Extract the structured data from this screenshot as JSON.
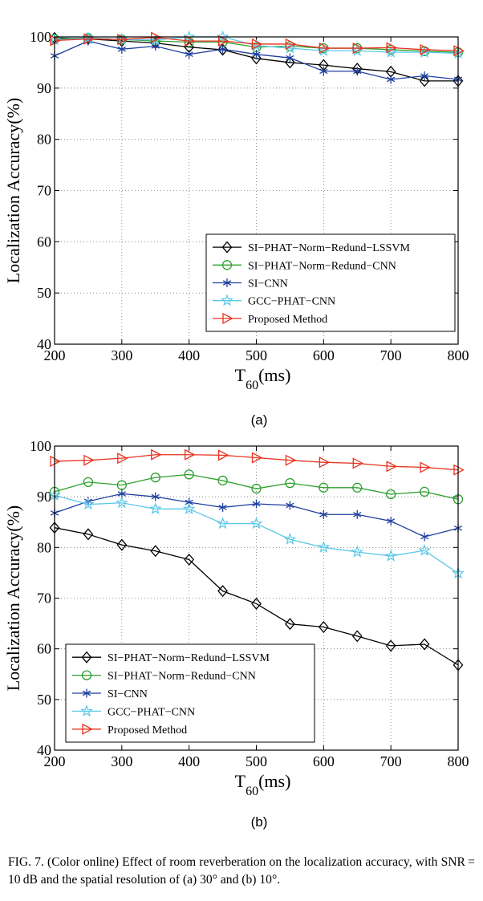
{
  "chart_data": [
    {
      "type": "line",
      "panel_label": "(a)",
      "xlabel": {
        "main": "T",
        "sub": "60",
        "unit": "(ms)"
      },
      "ylabel": "Localization Accuracy(%)",
      "xlim": [
        200,
        800
      ],
      "ylim": [
        40,
        100
      ],
      "xticks": [
        200,
        300,
        400,
        500,
        600,
        700,
        800
      ],
      "yticks": [
        40,
        50,
        60,
        70,
        80,
        90,
        100
      ],
      "grid": "dotted",
      "legend_position": "bottom-right",
      "x": [
        200,
        250,
        300,
        350,
        400,
        450,
        500,
        550,
        600,
        650,
        700,
        750,
        800
      ],
      "series": [
        {
          "name": "SI−PHAT−Norm−Redund−LSSVM",
          "color": "#000000",
          "marker": "diamond",
          "values": [
            99.8,
            99.6,
            99.2,
            98.8,
            98.0,
            97.5,
            95.8,
            95.0,
            94.5,
            93.8,
            93.2,
            91.4,
            91.4
          ]
        },
        {
          "name": "SI−PHAT−Norm−Redund−CNN",
          "color": "#2ca02c",
          "marker": "circle",
          "values": [
            99.6,
            99.8,
            99.5,
            99.2,
            99.0,
            99.0,
            98.0,
            98.2,
            97.8,
            97.8,
            97.5,
            97.2,
            97.0
          ]
        },
        {
          "name": "SI−CNN",
          "color": "#1f3fa0",
          "marker": "asterisk",
          "values": [
            96.3,
            99.2,
            97.6,
            98.2,
            96.6,
            97.6,
            96.6,
            95.9,
            93.3,
            93.3,
            91.7,
            92.4,
            91.7
          ]
        },
        {
          "name": "GCC−PHAT−CNN",
          "color": "#5bc8e8",
          "marker": "star",
          "values": [
            99.4,
            99.8,
            99.5,
            99.4,
            100.0,
            100.0,
            98.3,
            97.8,
            97.3,
            97.3,
            97.0,
            97.0,
            96.8
          ]
        },
        {
          "name": "Proposed Method",
          "color": "#e8321e",
          "marker": "triangle-right",
          "values": [
            99.3,
            99.6,
            99.5,
            99.9,
            99.2,
            99.2,
            98.6,
            98.6,
            97.8,
            97.8,
            97.9,
            97.5,
            97.3
          ]
        }
      ]
    },
    {
      "type": "line",
      "panel_label": "(b)",
      "xlabel": {
        "main": "T",
        "sub": "60",
        "unit": "(ms)"
      },
      "ylabel": "Localization Accuracy(%)",
      "xlim": [
        200,
        800
      ],
      "ylim": [
        40,
        100
      ],
      "xticks": [
        200,
        300,
        400,
        500,
        600,
        700,
        800
      ],
      "yticks": [
        40,
        50,
        60,
        70,
        80,
        90,
        100
      ],
      "grid": "dotted",
      "legend_position": "bottom-left",
      "x": [
        200,
        250,
        300,
        350,
        400,
        450,
        500,
        550,
        600,
        650,
        700,
        750,
        800
      ],
      "series": [
        {
          "name": "SI−PHAT−Norm−Redund−LSSVM",
          "color": "#000000",
          "marker": "diamond",
          "values": [
            83.9,
            82.6,
            80.5,
            79.3,
            77.6,
            71.4,
            68.9,
            64.9,
            64.3,
            62.5,
            60.6,
            60.9,
            56.8
          ]
        },
        {
          "name": "SI−PHAT−Norm−Redund−CNN",
          "color": "#2ca02c",
          "marker": "circle",
          "values": [
            91.0,
            92.9,
            92.3,
            93.8,
            94.4,
            93.2,
            91.6,
            92.7,
            91.8,
            91.8,
            90.5,
            91.0,
            89.5
          ]
        },
        {
          "name": "SI−CNN",
          "color": "#1f3fa0",
          "marker": "asterisk",
          "values": [
            86.8,
            89.1,
            90.6,
            90.0,
            88.9,
            87.9,
            88.6,
            88.3,
            86.5,
            86.5,
            85.2,
            82.1,
            83.8
          ]
        },
        {
          "name": "GCC−PHAT−CNN",
          "color": "#5bc8e8",
          "marker": "star",
          "values": [
            90.3,
            88.5,
            88.8,
            87.6,
            87.6,
            84.7,
            84.7,
            81.6,
            80.0,
            79.1,
            78.3,
            79.4,
            74.9
          ]
        },
        {
          "name": "Proposed Method",
          "color": "#e8321e",
          "marker": "triangle-right",
          "values": [
            97.0,
            97.2,
            97.6,
            98.3,
            98.3,
            98.2,
            97.7,
            97.2,
            96.8,
            96.6,
            96.0,
            95.8,
            95.3
          ]
        }
      ]
    }
  ],
  "caption": "FIG. 7. (Color online) Effect of room reverberation on the localization accuracy, with SNR = 10 dB and the spatial resolution of (a) 30° and (b) 10°."
}
